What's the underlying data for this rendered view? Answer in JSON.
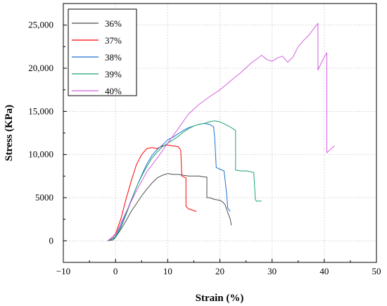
{
  "chart_data": {
    "type": "line",
    "title": "",
    "xlabel": "Strain (%)",
    "ylabel": "Stress (KPa)",
    "xlim": [
      -10,
      50
    ],
    "ylim": [
      -2500,
      27500
    ],
    "x_ticks": [
      -10,
      0,
      10,
      20,
      30,
      40,
      50
    ],
    "y_ticks": [
      0,
      5000,
      10000,
      15000,
      20000,
      25000
    ],
    "y_tick_labels": [
      "0",
      "5000",
      "10,000",
      "15,000",
      "20,000",
      "25,000"
    ],
    "grid": true,
    "legend_position": "top-left",
    "series": [
      {
        "name": "36%",
        "color": "#4d4d4d",
        "x": [
          -1.5,
          -0.5,
          0,
          1,
          2,
          3,
          4,
          5,
          6,
          7,
          8,
          9,
          10,
          11,
          12,
          13,
          14,
          15,
          16,
          17,
          17.5,
          17.5,
          18,
          19,
          20,
          20.5,
          21,
          21.5,
          22,
          22.2
        ],
        "y": [
          0,
          100,
          400,
          1300,
          2300,
          3400,
          4300,
          5200,
          6000,
          6700,
          7300,
          7600,
          7800,
          7700,
          7700,
          7600,
          7500,
          7500,
          7500,
          7400,
          7400,
          5000,
          5000,
          4800,
          4700,
          4500,
          4200,
          3300,
          2500,
          1800
        ]
      },
      {
        "name": "37%",
        "color": "#ff0000",
        "x": [
          -1.5,
          -1,
          0,
          1,
          2,
          3,
          4,
          5,
          6,
          7,
          8,
          9,
          10,
          11,
          12,
          12.5,
          12.7,
          13.5,
          13.5,
          14,
          15,
          15.5
        ],
        "y": [
          0,
          200,
          800,
          2500,
          4800,
          6900,
          8800,
          10000,
          10700,
          10800,
          10700,
          11000,
          11100,
          11000,
          10900,
          10500,
          7500,
          7300,
          4000,
          3700,
          3500,
          3400
        ]
      },
      {
        "name": "38%",
        "color": "#1f6fd1",
        "x": [
          -1.5,
          -1,
          0,
          1,
          2,
          3,
          4,
          5,
          6,
          7,
          8,
          9,
          10,
          11,
          12,
          13,
          14,
          15,
          16,
          17,
          18,
          18.8,
          19,
          19.3,
          20,
          20.8,
          21.3,
          21.5,
          22
        ],
        "y": [
          0,
          100,
          500,
          1700,
          3200,
          4700,
          6200,
          7600,
          8900,
          9900,
          10600,
          11100,
          11700,
          12000,
          12400,
          12800,
          13100,
          13300,
          13500,
          13600,
          13500,
          13200,
          12000,
          8500,
          8300,
          8100,
          5500,
          3800,
          3400
        ]
      },
      {
        "name": "39%",
        "color": "#1aa56f",
        "x": [
          -1.5,
          -1,
          0,
          1,
          2,
          3,
          4,
          5,
          6,
          7,
          8,
          9,
          10,
          11,
          12,
          13,
          14,
          15,
          16,
          17,
          18,
          19,
          20,
          21,
          22,
          22.5,
          23,
          23,
          24,
          25,
          26,
          26.5,
          26.8,
          27,
          28
        ],
        "y": [
          0,
          100,
          400,
          1500,
          3000,
          4600,
          6200,
          7500,
          8600,
          9600,
          10300,
          10900,
          11300,
          11700,
          12100,
          12600,
          13000,
          13300,
          13500,
          13600,
          13800,
          13900,
          13800,
          13500,
          13200,
          13000,
          12800,
          8200,
          8100,
          8100,
          8000,
          7900,
          4800,
          4600,
          4600
        ]
      },
      {
        "name": "40%",
        "color": "#d45fe0",
        "x": [
          -1.5,
          0,
          2,
          4,
          6,
          8,
          10,
          12,
          14,
          16,
          18,
          20,
          22,
          24,
          26,
          28,
          29,
          30,
          31,
          32,
          33,
          34,
          35,
          36,
          37,
          38,
          38.8,
          38.8,
          39.5,
          40.5,
          40.5,
          41,
          42
        ],
        "y": [
          0,
          700,
          3300,
          5800,
          8000,
          9600,
          11300,
          13000,
          14700,
          15800,
          16700,
          17500,
          18500,
          19500,
          20600,
          21500,
          21000,
          20800,
          21200,
          21400,
          20700,
          21300,
          22500,
          23200,
          23800,
          24600,
          25200,
          19800,
          20700,
          21800,
          10200,
          10500,
          11000
        ]
      }
    ]
  }
}
